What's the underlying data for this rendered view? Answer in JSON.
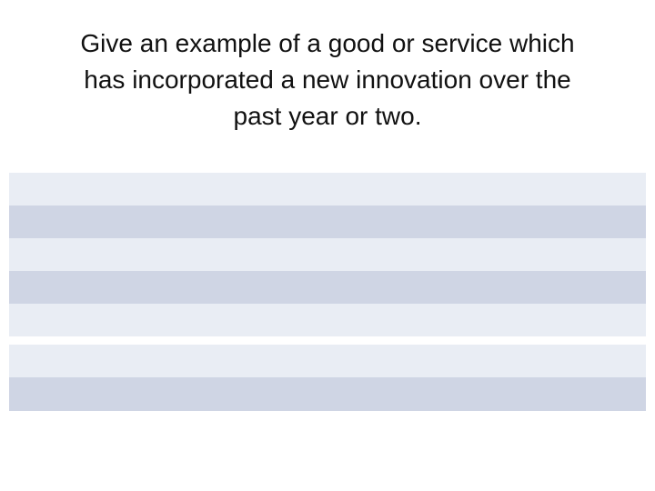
{
  "title": {
    "lines": [
      "Give an example of a good or service which",
      "has incorporated a new innovation over the",
      "past year or two."
    ]
  }
}
